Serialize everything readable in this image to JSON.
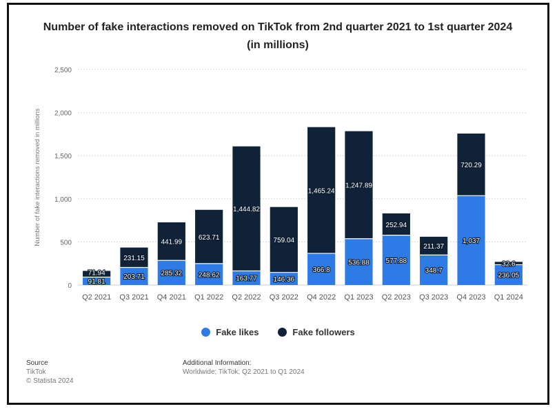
{
  "title": "Number of fake interactions removed on TikTok from 2nd quarter 2021 to 1st quarter 2024 (in millions)",
  "colors": {
    "likes": "#2f7be5",
    "followers": "#0f2238"
  },
  "source": {
    "heading": "Source",
    "line1": "TikTok",
    "line2": "© Statista 2024"
  },
  "additional_info": {
    "heading": "Additional Information:",
    "text": "Worldwide; TikTok; Q2 2021 to Q1 2024"
  },
  "chart_data": {
    "type": "bar",
    "stacked": true,
    "title": "Number of fake interactions removed on TikTok from 2nd quarter 2021 to 1st quarter 2024 (in millions)",
    "xlabel": "",
    "ylabel": "Number of fake interactions removed in millions",
    "ylim": [
      0,
      2500
    ],
    "yticks": [
      0,
      500,
      1000,
      1500,
      2000,
      2500
    ],
    "ytick_labels": [
      "0",
      "500",
      "1,000",
      "1,500",
      "2,000",
      "2,500"
    ],
    "grid": true,
    "legend_position": "bottom",
    "categories": [
      "Q2 2021",
      "Q3 2021",
      "Q4 2021",
      "Q1 2022",
      "Q2 2022",
      "Q3 2022",
      "Q4 2022",
      "Q1 2023",
      "Q2 2023",
      "Q3 2023",
      "Q4 2023",
      "Q1 2024"
    ],
    "series": [
      {
        "name": "Fake likes",
        "values": [
          91.81,
          203.71,
          285.32,
          248.62,
          163.77,
          146.36,
          366.8,
          536.88,
          577.88,
          348.7,
          1037,
          236.05
        ],
        "labels": [
          "91.81",
          "203.71",
          "285.32",
          "248.62",
          "163.77",
          "146.36",
          "366.8",
          "536.88",
          "577.88",
          "348.7",
          "1,037",
          "236.05"
        ]
      },
      {
        "name": "Fake followers",
        "values": [
          71.94,
          231.15,
          441.99,
          623.71,
          1444.82,
          759.04,
          1465.24,
          1247.89,
          252.94,
          211.37,
          720.29,
          32.6
        ],
        "labels": [
          "71.94",
          "231.15",
          "441.99",
          "623.71",
          "1,444.82",
          "759.04",
          "1,465.24",
          "1,247.89",
          "252.94",
          "211.37",
          "720.29",
          "32.6"
        ]
      }
    ]
  }
}
